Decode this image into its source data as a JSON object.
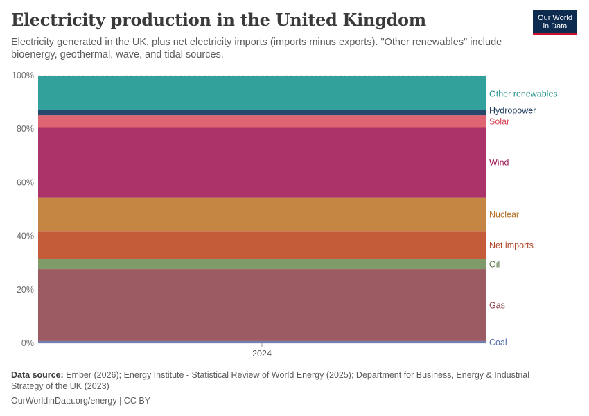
{
  "header": {
    "title": "Electricity production in the United Kingdom",
    "subtitle": "Electricity generated in the UK, plus net electricity imports (imports minus exports). \"Other renewables\" include bioenergy, geothermal, wave, and tidal sources."
  },
  "logo": {
    "line1": "Our World",
    "line2": "in Data"
  },
  "chart_data": {
    "type": "area",
    "stacking": "percent",
    "x": [
      "2024"
    ],
    "y_ticks": [
      "0%",
      "20%",
      "40%",
      "60%",
      "80%",
      "100%"
    ],
    "ylim": [
      0,
      100
    ],
    "grid": true,
    "legend": "right-inline labels",
    "series": [
      {
        "name": "Coal",
        "value": 0.8,
        "color": "#6d7fb5",
        "label_color": "#4f6aa8"
      },
      {
        "name": "Gas",
        "value": 26.9,
        "color": "#9c5a63",
        "label_color": "#8c3a43"
      },
      {
        "name": "Oil",
        "value": 3.7,
        "color": "#7f9b6a",
        "label_color": "#5e7a48"
      },
      {
        "name": "Net imports",
        "value": 10.5,
        "color": "#c45c3a",
        "label_color": "#b24a2a"
      },
      {
        "name": "Nuclear",
        "value": 12.6,
        "color": "#c58643",
        "label_color": "#b3712a"
      },
      {
        "name": "Wind",
        "value": 26.2,
        "color": "#ac326a",
        "label_color": "#9a1b57"
      },
      {
        "name": "Solar",
        "value": 4.5,
        "color": "#df6573",
        "label_color": "#d94a5a"
      },
      {
        "name": "Hydropower",
        "value": 1.9,
        "color": "#26486b",
        "label_color": "#1c3a5e"
      },
      {
        "name": "Other renewables",
        "value": 12.9,
        "color": "#33a19b",
        "label_color": "#23918b"
      }
    ]
  },
  "footer": {
    "source_label": "Data source:",
    "source_text": "Ember (2026); Energy Institute - Statistical Review of World Energy (2025); Department for Business, Energy & Industrial Strategy of the UK (2023)",
    "url": "OurWorldinData.org/energy | CC BY"
  }
}
